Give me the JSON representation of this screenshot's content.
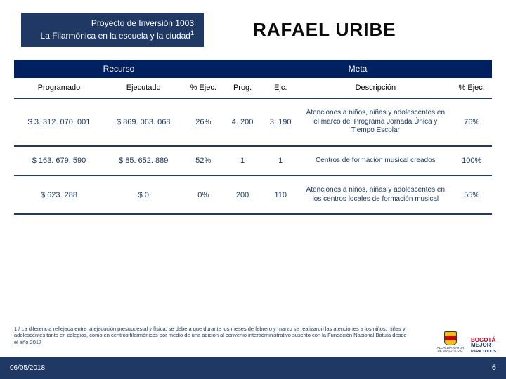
{
  "header": {
    "project_line1": "Proyecto de Inversión 1003",
    "project_line2": "La Filarmónica en la escuela y la ciudad",
    "project_sup": "1",
    "title": "RAFAEL URIBE"
  },
  "table": {
    "group_headers": {
      "recurso": "Recurso",
      "meta": "Meta"
    },
    "col_headers": {
      "programado": "Programado",
      "ejecutado": "Ejecutado",
      "pct_ejec_r": "% Ejec.",
      "prog": "Prog.",
      "ejc": "Ejc.",
      "descripcion": "Descripción",
      "pct_ejec_m": "% Ejec."
    },
    "rows": [
      {
        "programado": "$ 3. 312. 070. 001",
        "ejecutado": "$ 869. 063. 068",
        "pct_r": "26%",
        "prog": "4. 200",
        "ejc": "3. 190",
        "desc": "Atenciones a niños, niñas y adolescentes en el marco del Programa Jornada Única y Tiempo Escolar",
        "pct_m": "76%"
      },
      {
        "programado": "$ 163. 679. 590",
        "ejecutado": "$ 85. 652. 889",
        "pct_r": "52%",
        "prog": "1",
        "ejc": "1",
        "desc": "Centros de formación musical creados",
        "pct_m": "100%"
      },
      {
        "programado": "$ 623. 288",
        "ejecutado": "$ 0",
        "pct_r": "0%",
        "prog": "200",
        "ejc": "110",
        "desc": "Atenciones a niños, niñas y adolescentes en los centros locales de formación musical",
        "pct_m": "55%"
      }
    ]
  },
  "footnote": "1 / La diferencia reflejada entre la ejecución presupuestal y física, se debe a que durante los meses de febrero y marzo se realizaron las atenciones a los niños, niñas y adolescentes tanto en colegios, como en centros filarmónicos por medio de una adición al convenio interadministrativo suscrito con la Fundación Nacional Batuta desde el año 2017",
  "footer": {
    "date": "06/05/2018",
    "page": "6"
  },
  "logos": {
    "alcaldia_text": "ALCALDÍA MAYOR\nDE BOGOTÁ D.C.",
    "bogota_l1": "BOGOTÁ",
    "bogota_l2": "MEJOR",
    "bogota_l3": "PARA TODOS"
  },
  "colors": {
    "brand_dark": "#203864",
    "brand_navy": "#002060",
    "text_body": "#17365d"
  }
}
